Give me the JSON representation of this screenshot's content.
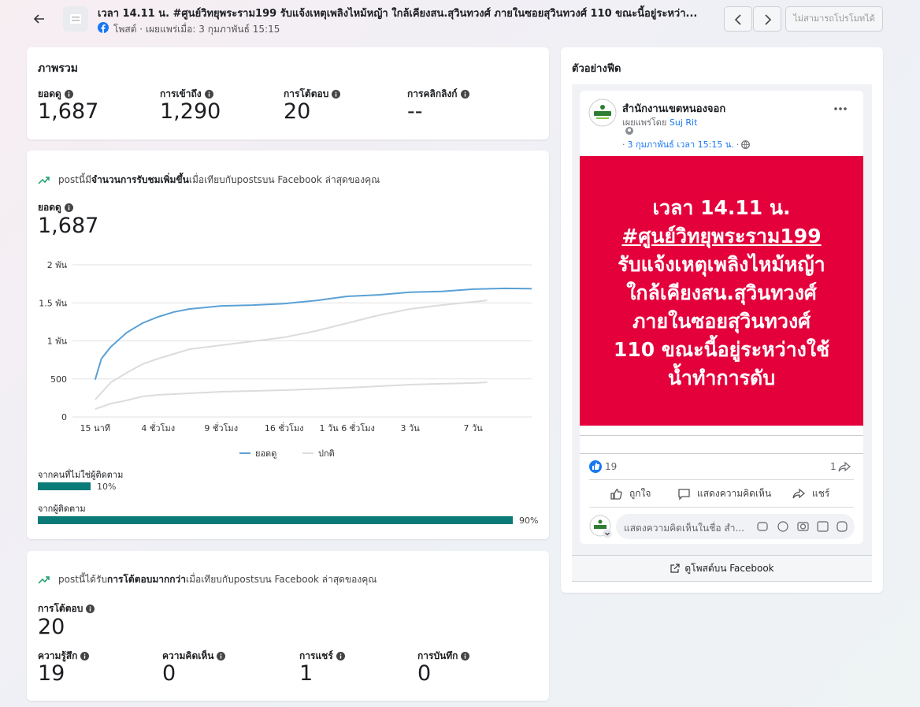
{
  "header": {
    "title": "เวลา 14.11 น. #ศูนย์วิทยุพระราม199 รับแจ้งเหตุเพลิงไหม้หญ้า ใกล้เคียงสน.สุวินทวงศ์ ภายในซอยสุวินทวงศ์ 110 ขณะนี้อยู่ระหว่า...",
    "meta": "โพสต์ · เผยแพร่เมื่อ: 3 กุมภาพันธ์ 15:15",
    "promote_button": "ไม่สามารถโปรโมทได้"
  },
  "overview": {
    "title": "ภาพรวม",
    "metrics": [
      {
        "label": "ยอดดู",
        "value": "1,687"
      },
      {
        "label": "การเข้าถึง",
        "value": "1,290"
      },
      {
        "label": "การโต้ตอบ",
        "value": "20"
      },
      {
        "label": "การคลิกลิงก์",
        "value": "--"
      }
    ]
  },
  "views_card": {
    "headline": [
      "postนี้มี",
      "จำนวนการรับชมเพิ่มขึ้น",
      "เมื่อเทียบกับpostsบน Facebook ล่าสุดของคุณ"
    ],
    "metric_label": "ยอดดู",
    "metric_value": "1,687",
    "audience": [
      {
        "label": "จากคนที่ไม่ใช่ผู้ติดตาม",
        "value": 10,
        "value_label": "10%"
      },
      {
        "label": "จากผู้ติดตาม",
        "value": 90,
        "value_label": "90%"
      }
    ],
    "audience_color": "#0b7b77"
  },
  "chart_data": {
    "type": "line",
    "xlim": [
      -0.36,
      6.93
    ],
    "xticks": [
      {
        "value": 0,
        "label": "15 นาที"
      },
      {
        "value": 1,
        "label": "4 ชั่วโมง"
      },
      {
        "value": 2,
        "label": "9 ชั่วโมง"
      },
      {
        "value": 3,
        "label": "16 ชั่วโมง"
      },
      {
        "value": 4,
        "label": "1 วัน 6 ชั่วโมง"
      },
      {
        "value": 5,
        "label": "3 วัน"
      },
      {
        "value": 6,
        "label": "7 วัน"
      }
    ],
    "ylim": [
      0,
      2000
    ],
    "yticks": [
      0,
      500,
      {
        "value": 1000,
        "label": "1 พัน"
      },
      {
        "value": 1500,
        "label": "1.5 พัน"
      },
      {
        "value": 2000,
        "label": "2 พัน"
      }
    ],
    "grid": true,
    "series": [
      {
        "name": "ยอดดู",
        "color": "#5aa1d6",
        "x": [
          0,
          0.1,
          0.25,
          0.5,
          0.75,
          1,
          1.25,
          1.5,
          2,
          2.5,
          3,
          3.5,
          4,
          4.5,
          5,
          5.5,
          6,
          6.5,
          6.93
        ],
        "values": [
          490,
          767,
          922,
          1109,
          1233,
          1316,
          1380,
          1420,
          1460,
          1470,
          1490,
          1530,
          1585,
          1605,
          1640,
          1650,
          1680,
          1690,
          1687
        ]
      },
      {
        "name": "ปกติ",
        "color": "#dcdcdc",
        "x": [
          0,
          0.25,
          0.5,
          0.75,
          1,
          1.5,
          2,
          2.5,
          3,
          3.5,
          4,
          4.5,
          5,
          5.5,
          6,
          6.225
        ],
        "values": [
          228,
          456,
          580,
          694,
          767,
          891,
          943,
          995,
          1047,
          1130,
          1233,
          1337,
          1420,
          1470,
          1513,
          1533
        ],
        "low": [
          104,
          176,
          218,
          269,
          290,
          311,
          332,
          342,
          352,
          368,
          383,
          404,
          425,
          436,
          446,
          456
        ]
      }
    ]
  },
  "interactions_card": {
    "headline": [
      "postนี้ได้รับ",
      "การโต้ตอบมากกว่า",
      "เมื่อเทียบกับpostsบน Facebook ล่าสุดของคุณ"
    ],
    "metric_label": "การโต้ตอบ",
    "metric_value": "20",
    "metrics": [
      {
        "label": "ความรู้สึก",
        "value": "19"
      },
      {
        "label": "ความคิดเห็น",
        "value": "0"
      },
      {
        "label": "การแชร์",
        "value": "1"
      },
      {
        "label": "การบันทึก",
        "value": "0"
      }
    ]
  },
  "preview": {
    "title": "ตัวอย่างฟีด",
    "page_name": "สำนักงานเขตหนองจอก",
    "published_by": "เผยแพร่โดย",
    "author": "Suj Rit",
    "date": "3 กุมภาพันธ์ เวลา 15:15 น.",
    "image_lines": [
      "เวลา 14.11 น.",
      "#ศูนย์วิทยุพระราม199",
      "รับแจ้งเหตุเพลิงไหม้หญ้า",
      "ใกล้เคียงสน.สุวินทวงศ์",
      "ภายในซอยสุวินทวงศ์",
      "110 ขณะนี้อยู่ระหว่างใช้",
      "น้ำทำการดับ"
    ],
    "reactions": "19",
    "shares": "1",
    "actions": [
      "ถูกใจ",
      "แสดงความคิดเห็น",
      "แชร์"
    ],
    "comment_placeholder": "แสดงความคิดเห็นในชื่อ สำ...",
    "view_button": "ดูโพสต์บน Facebook"
  }
}
